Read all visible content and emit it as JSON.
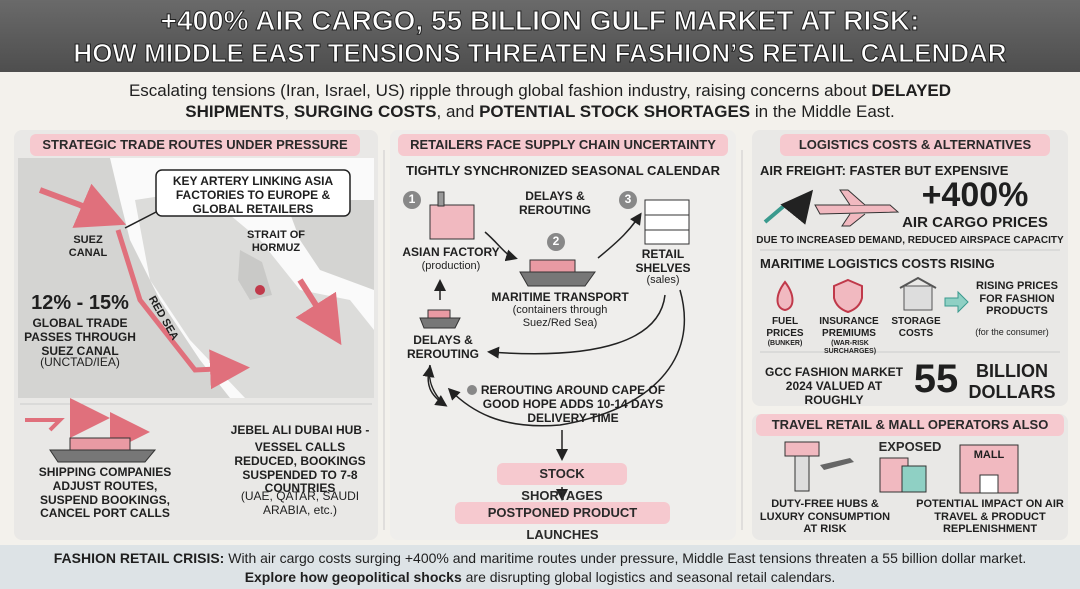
{
  "header": {
    "title_line1": "+400% AIR CARGO, 55 BILLION GULF MARKET AT RISK:",
    "title_line2": "HOW MIDDLE EAST TENSIONS THREATEN FASHION’S RETAIL CALENDAR"
  },
  "intro": [
    "Escalating tensions (Iran, Israel, US) ripple through global fashion industry, raising concerns about ",
    "DELAYED SHIPMENTS",
    ", ",
    "SURGING COSTS",
    ", and ",
    "POTENTIAL STOCK SHORTAGES",
    " in the Middle East."
  ],
  "trade_routes": {
    "title": "STRATEGIC TRADE ROUTES UNDER PRESSURE",
    "callout": "KEY ARTERY LINKING ASIA FACTORIES TO EUROPE & GLOBAL RETAILERS",
    "suez_label": "SUEZ CANAL",
    "red_sea_label": "RED SEA",
    "hormuz_label": "STRAIT OF HORMUZ",
    "stat": "12% - 15%",
    "stat_text": "GLOBAL TRADE PASSES THROUGH SUEZ CANAL",
    "stat_source": "(UNCTAD/IEA)",
    "shipping": "SHIPPING COMPANIES ADJUST ROUTES, SUSPEND BOOKINGS, CANCEL PORT CALLS",
    "jebel_title": "JEBEL ALI DUBAI HUB -",
    "jebel_text": "VESSEL CALLS REDUCED, BOOKINGS SUSPENDED TO 7-8 COUNTRIES",
    "jebel_note": "(UAE, QATAR, SAUDI ARABIA, etc.)"
  },
  "supply_chain": {
    "title": "RETAILERS FACE SUPPLY CHAIN UNCERTAINTY",
    "subtitle": "TIGHTLY SYNCHRONIZED SEASONAL CALENDAR",
    "steps": [
      {
        "number": "1",
        "label": "ASIAN FACTORY",
        "note": "(production)"
      },
      {
        "number": "2",
        "label": "MARITIME TRANSPORT",
        "note": "(containers through Suez/Red Sea)"
      },
      {
        "number": "3",
        "label": "RETAIL SHELVES",
        "note": "(sales)"
      }
    ],
    "delay_top": "DELAYS & REROUTING",
    "delay_left": "DELAYS & REROUTING",
    "cape": "REROUTING AROUND CAPE OF GOOD HOPE ADDS 10-14 DAYS DELIVERY TIME",
    "shortages": "STOCK SHORTAGES",
    "postponed": "POSTPONED PRODUCT LAUNCHES"
  },
  "logistics": {
    "title": "LOGISTICS COSTS & ALTERNATIVES",
    "air_heading": "AIR FREIGHT: FASTER BUT EXPENSIVE",
    "air_stat": "+400%",
    "air_stat_label": "AIR CARGO PRICES",
    "air_note": "DUE TO INCREASED DEMAND, REDUCED AIRSPACE CAPACITY",
    "maritime_heading": "MARITIME LOGISTICS COSTS RISING",
    "costs": [
      {
        "label": "FUEL PRICES",
        "note": "(BUNKER)"
      },
      {
        "label": "INSURANCE PREMIUMS",
        "note": "(WAR-RISK SURCHARGES)"
      },
      {
        "label": "STORAGE COSTS"
      }
    ],
    "result": "RISING PRICES FOR FASHION PRODUCTS",
    "result_note": "(for the consumer)",
    "gcc_text": "GCC FASHION MARKET 2024 VALUED AT ROUGHLY",
    "gcc_value": "55",
    "gcc_unit": "BILLION DOLLARS"
  },
  "travel_retail": {
    "title": "TRAVEL RETAIL & MALL OPERATORS ALSO EXPOSED",
    "mall_sign": "MALL",
    "items": [
      "DUTY-FREE HUBS & LUXURY CONSUMPTION AT RISK",
      "POTENTIAL IMPACT ON AIR TRAVEL & PRODUCT REPLENISHMENT"
    ]
  },
  "footer": [
    "FASHION RETAIL CRISIS:",
    " With air cargo costs surging +400% and maritime routes under pressure, Middle East tensions threaten a 55 billion dollar market.",
    "Explore how geopolitical shocks",
    " are disrupting global logistics and seasonal retail calendars."
  ]
}
